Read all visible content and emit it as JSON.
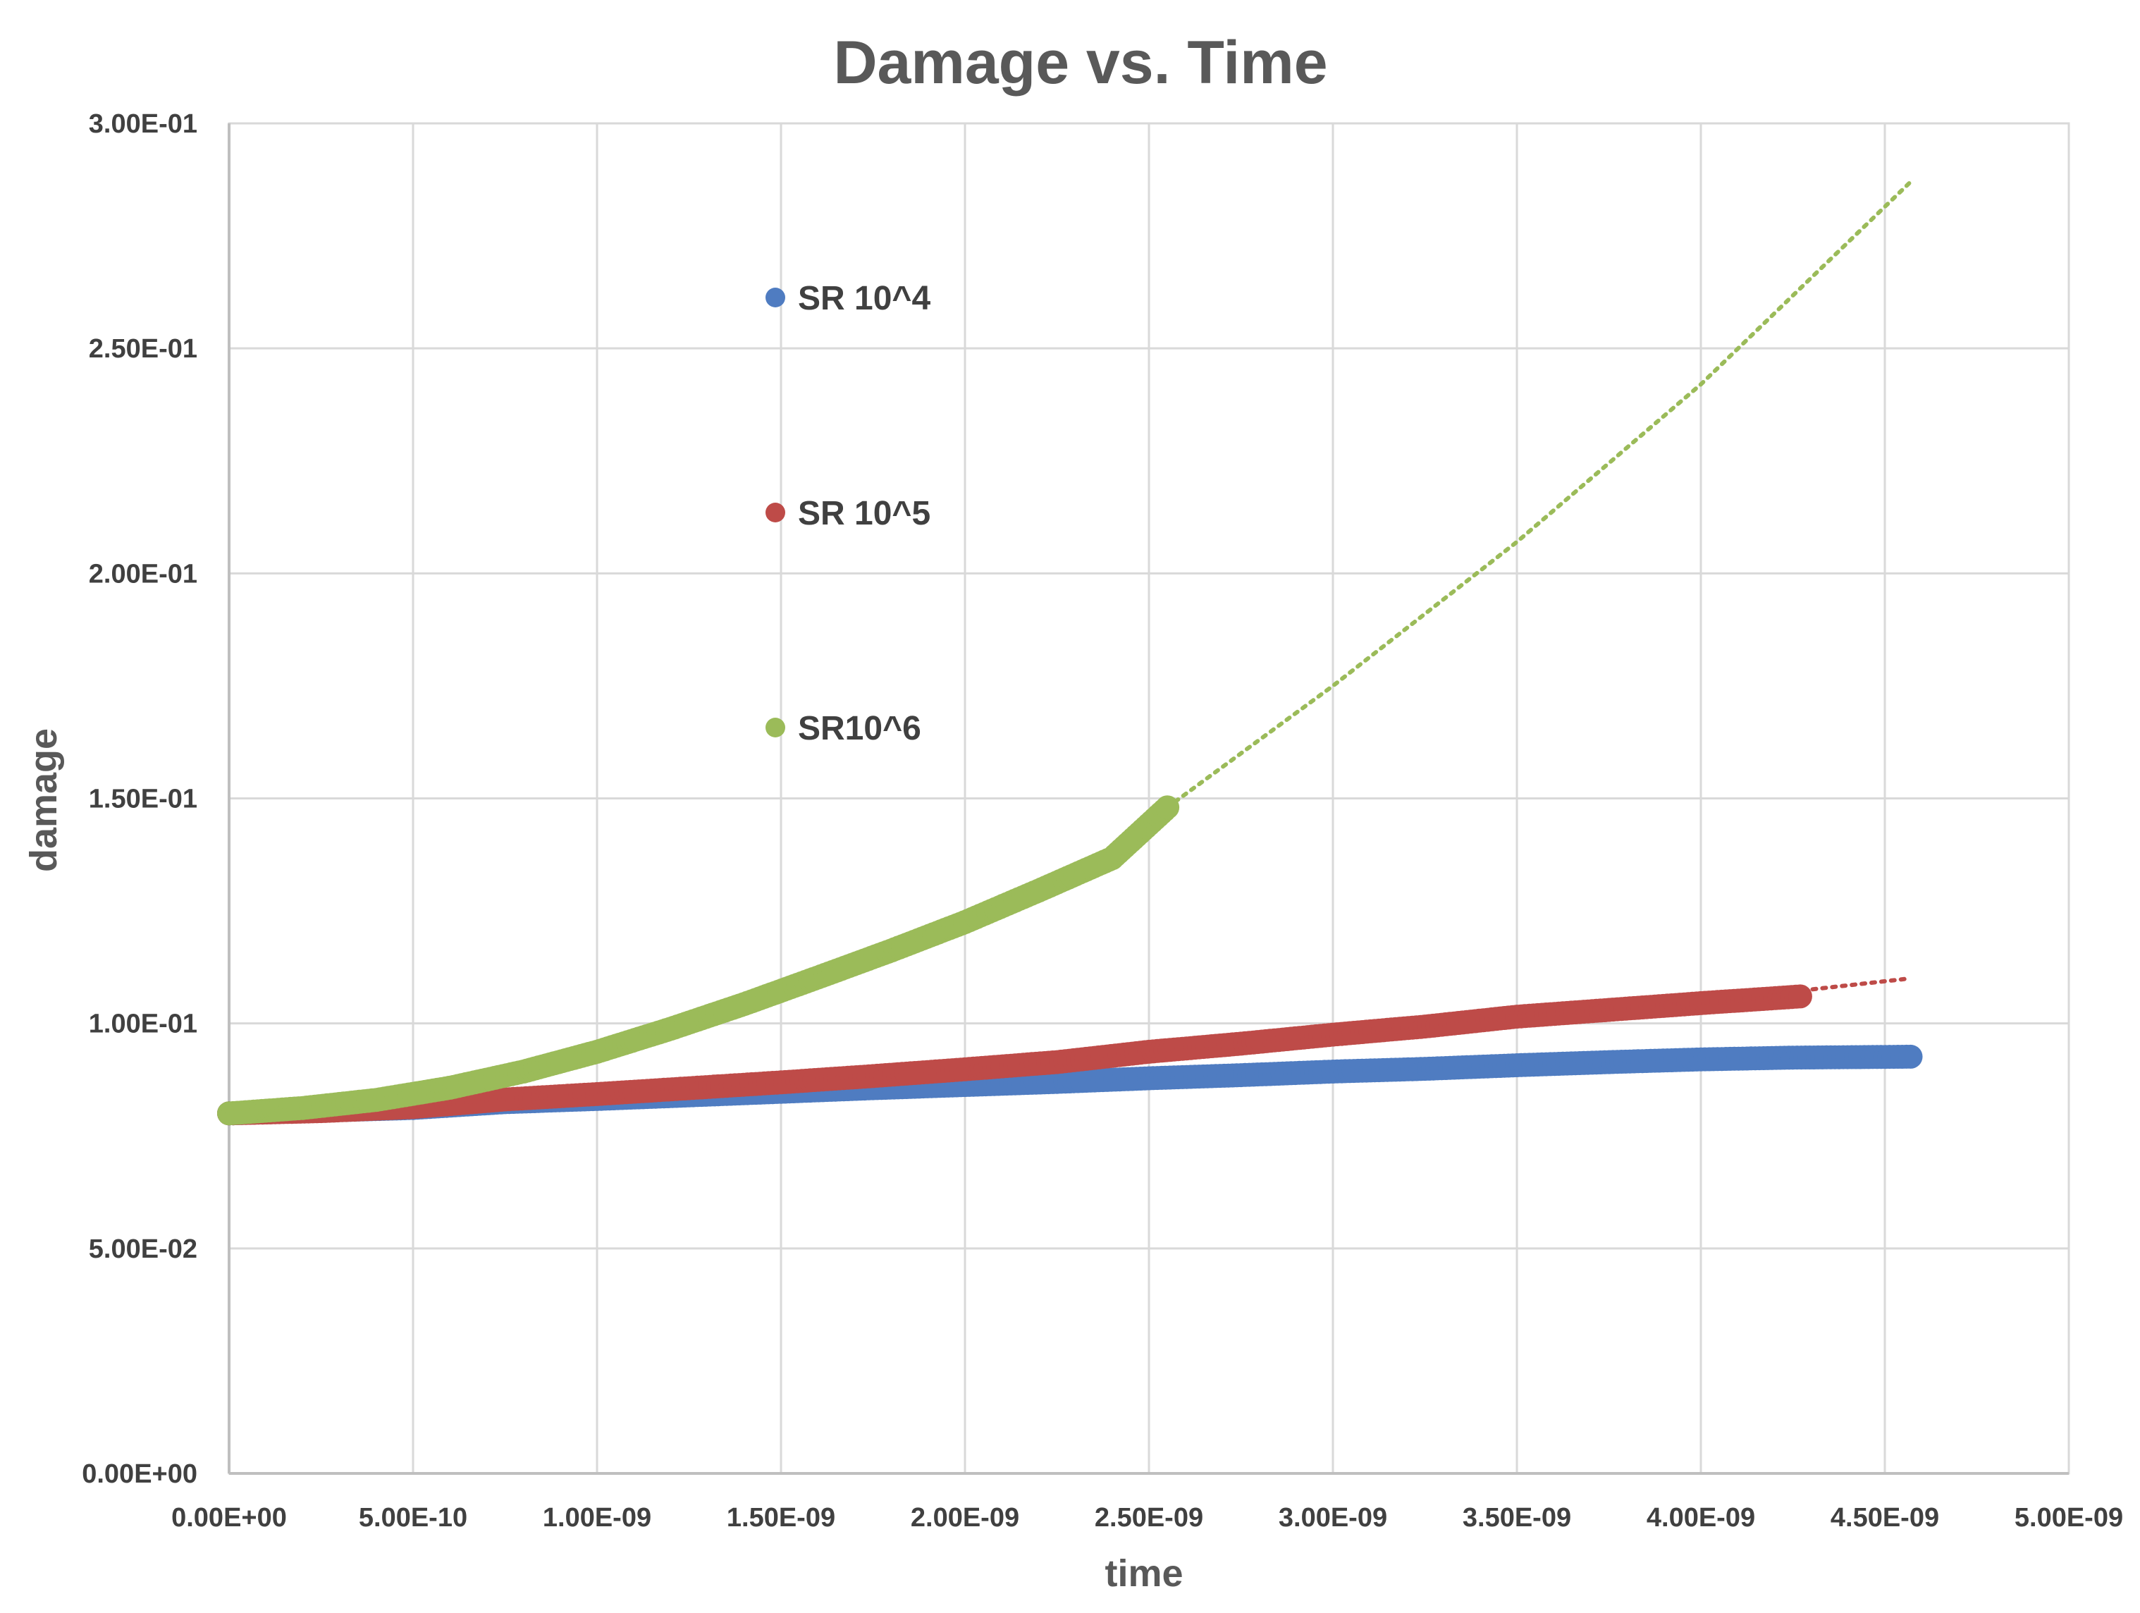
{
  "chart_data": {
    "type": "scatter",
    "title": "Damage vs. Time",
    "xlabel": "time",
    "ylabel": "damage",
    "xlim": [
      0,
      5e-09
    ],
    "ylim": [
      0,
      0.3
    ],
    "grid": true,
    "legend_position": "inside-upper-middle",
    "x_ticks": [
      0,
      5e-10,
      1e-09,
      1.5e-09,
      2e-09,
      2.5e-09,
      3e-09,
      3.5e-09,
      4e-09,
      4.5e-09,
      5e-09
    ],
    "x_tick_labels": [
      "0.00E+00",
      "5.00E-10",
      "1.00E-09",
      "1.50E-09",
      "2.00E-09",
      "2.50E-09",
      "3.00E-09",
      "3.50E-09",
      "4.00E-09",
      "4.50E-09",
      "5.00E-09"
    ],
    "y_ticks": [
      0,
      0.05,
      0.1,
      0.15,
      0.2,
      0.25,
      0.3
    ],
    "y_tick_labels": [
      "0.00E+00",
      "5.00E-02",
      "1.00E-01",
      "1.50E-01",
      "2.00E-01",
      "2.50E-01",
      "3.00E-01"
    ],
    "series": [
      {
        "name": "SR 10^4",
        "color": "#4F7CC1",
        "x": [
          0,
          2.5e-10,
          5e-10,
          7.5e-10,
          1e-09,
          1.25e-09,
          1.5e-09,
          1.75e-09,
          2e-09,
          2.25e-09,
          2.5e-09,
          2.75e-09,
          3e-09,
          3.25e-09,
          3.5e-09,
          3.75e-09,
          4e-09,
          4.25e-09,
          4.57e-09
        ],
        "y": [
          0.08,
          0.0806,
          0.0812,
          0.0825,
          0.0832,
          0.084,
          0.0848,
          0.0856,
          0.0863,
          0.087,
          0.0878,
          0.0885,
          0.0893,
          0.0899,
          0.0907,
          0.0914,
          0.092,
          0.0924,
          0.0926
        ],
        "trend_x": [],
        "trend_y": []
      },
      {
        "name": "SR 10^5",
        "color": "#BE4B48",
        "x": [
          0,
          2.5e-10,
          5e-10,
          7.5e-10,
          1e-09,
          1.25e-09,
          1.5e-09,
          1.75e-09,
          2e-09,
          2.25e-09,
          2.5e-09,
          2.75e-09,
          3e-09,
          3.25e-09,
          3.5e-09,
          3.75e-09,
          4e-09,
          4.27e-09
        ],
        "y": [
          0.08,
          0.0805,
          0.0814,
          0.0831,
          0.0843,
          0.0856,
          0.0869,
          0.0883,
          0.0898,
          0.0914,
          0.0937,
          0.0955,
          0.0975,
          0.0993,
          0.1015,
          0.103,
          0.1045,
          0.106
        ],
        "trend_x": [
          0,
          5e-10,
          1e-09,
          1.5e-09,
          2e-09,
          2.5e-09,
          3e-09,
          3.5e-09,
          4e-09,
          4.57e-09
        ],
        "trend_y": [
          0.08,
          0.081,
          0.0836,
          0.0868,
          0.0901,
          0.0936,
          0.097,
          0.1004,
          0.1048,
          0.11
        ]
      },
      {
        "name": "SR10^6",
        "color": "#9BBB59",
        "x": [
          0,
          2e-10,
          4e-10,
          6e-10,
          8e-10,
          1e-09,
          1.2e-09,
          1.4e-09,
          1.6e-09,
          1.8e-09,
          2e-09,
          2.2e-09,
          2.4e-09,
          2.55e-09
        ],
        "y": [
          0.08,
          0.0812,
          0.083,
          0.0857,
          0.0893,
          0.0937,
          0.0988,
          0.1043,
          0.1102,
          0.1162,
          0.1225,
          0.1295,
          0.1367,
          0.148
        ],
        "trend_x": [
          2.55e-09,
          3e-09,
          3.5e-09,
          4e-09,
          4.57e-09
        ],
        "trend_y": [
          0.148,
          0.175,
          0.207,
          0.242,
          0.287
        ]
      }
    ]
  }
}
